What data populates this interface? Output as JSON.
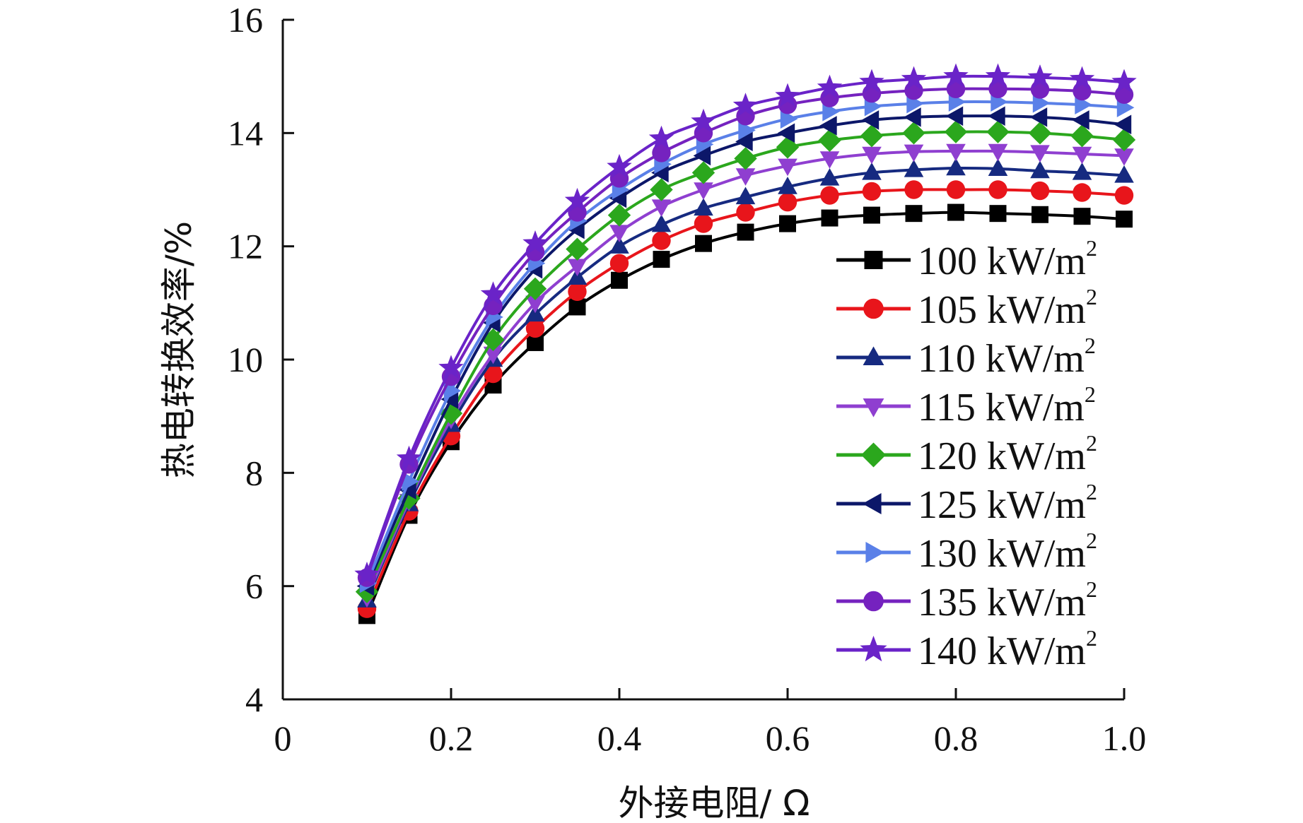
{
  "chart_data": {
    "type": "line",
    "xlabel": "外接电阻/ Ω",
    "ylabel": "热电转换效率/%",
    "xlim": [
      0,
      1.0
    ],
    "ylim": [
      4,
      16
    ],
    "x_ticks": [
      "0",
      "0.2",
      "0.4",
      "0.6",
      "0.8",
      "1.0"
    ],
    "y_ticks": [
      "4",
      "6",
      "8",
      "10",
      "12",
      "14",
      "16"
    ],
    "legend_position": "right",
    "legend_unit_base": " kW/m",
    "legend_unit_sup": "2",
    "x": [
      0.1,
      0.15,
      0.2,
      0.25,
      0.3,
      0.35,
      0.4,
      0.45,
      0.5,
      0.55,
      0.6,
      0.65,
      0.7,
      0.75,
      0.8,
      0.85,
      0.9,
      0.95,
      1.0
    ],
    "series": [
      {
        "name": "100",
        "color": "#000000",
        "marker": "square",
        "values": [
          5.48,
          7.25,
          8.55,
          9.55,
          10.3,
          10.93,
          11.4,
          11.77,
          12.05,
          12.25,
          12.4,
          12.5,
          12.55,
          12.58,
          12.6,
          12.58,
          12.56,
          12.53,
          12.48
        ]
      },
      {
        "name": "105",
        "color": "#e8151b",
        "marker": "circle",
        "values": [
          5.6,
          7.32,
          8.65,
          9.75,
          10.55,
          11.2,
          11.7,
          12.1,
          12.4,
          12.6,
          12.78,
          12.9,
          12.97,
          13.0,
          13.0,
          13.0,
          12.98,
          12.95,
          12.9
        ]
      },
      {
        "name": "110",
        "color": "#162a80",
        "marker": "triangle-up",
        "values": [
          5.75,
          7.45,
          8.85,
          10.0,
          10.8,
          11.45,
          12.0,
          12.38,
          12.67,
          12.87,
          13.05,
          13.2,
          13.3,
          13.35,
          13.38,
          13.37,
          13.33,
          13.3,
          13.25
        ]
      },
      {
        "name": "115",
        "color": "#8f3fd0",
        "marker": "triangle-down",
        "values": [
          5.8,
          7.5,
          8.95,
          10.1,
          11.0,
          11.65,
          12.25,
          12.7,
          13.0,
          13.25,
          13.42,
          13.55,
          13.63,
          13.67,
          13.68,
          13.68,
          13.66,
          13.63,
          13.6
        ]
      },
      {
        "name": "120",
        "color": "#2ba71d",
        "marker": "diamond",
        "values": [
          5.9,
          7.55,
          9.05,
          10.35,
          11.25,
          11.95,
          12.55,
          13.0,
          13.3,
          13.55,
          13.75,
          13.87,
          13.95,
          14.0,
          14.02,
          14.02,
          14.0,
          13.95,
          13.88
        ]
      },
      {
        "name": "125",
        "color": "#0c1769",
        "marker": "triangle-left",
        "values": [
          6.0,
          7.7,
          9.3,
          10.65,
          11.6,
          12.3,
          12.85,
          13.3,
          13.6,
          13.85,
          14.0,
          14.13,
          14.23,
          14.28,
          14.3,
          14.3,
          14.28,
          14.23,
          14.15
        ]
      },
      {
        "name": "130",
        "color": "#5a80e8",
        "marker": "triangle-right",
        "values": [
          6.05,
          7.85,
          9.45,
          10.75,
          11.7,
          12.45,
          13.0,
          13.45,
          13.8,
          14.05,
          14.25,
          14.38,
          14.47,
          14.52,
          14.55,
          14.55,
          14.53,
          14.5,
          14.45
        ]
      },
      {
        "name": "135",
        "color": "#7522bf",
        "marker": "circle",
        "values": [
          6.15,
          8.15,
          9.7,
          10.95,
          11.9,
          12.6,
          13.2,
          13.65,
          14.0,
          14.3,
          14.5,
          14.62,
          14.7,
          14.75,
          14.78,
          14.78,
          14.77,
          14.74,
          14.68
        ]
      },
      {
        "name": "140",
        "color": "#6a23c8",
        "marker": "star",
        "values": [
          6.2,
          8.25,
          9.85,
          11.15,
          12.05,
          12.8,
          13.4,
          13.9,
          14.2,
          14.48,
          14.65,
          14.8,
          14.9,
          14.95,
          15.0,
          15.0,
          14.98,
          14.95,
          14.9
        ]
      }
    ]
  }
}
